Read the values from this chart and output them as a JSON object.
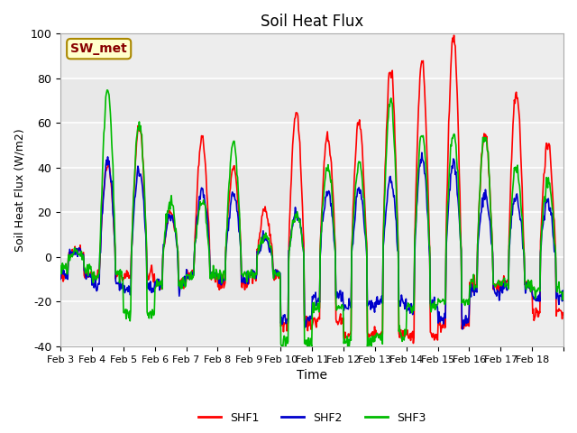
{
  "title": "Soil Heat Flux",
  "xlabel": "Time",
  "ylabel": "Soil Heat Flux (W/m2)",
  "ylim": [
    -40,
    100
  ],
  "line_colors": {
    "SHF1": "#ff0000",
    "SHF2": "#0000cc",
    "SHF3": "#00bb00"
  },
  "line_width": 1.2,
  "bg_color": "#e8e8e8",
  "annotation_text": "SW_met",
  "annotation_bg": "#ffffcc",
  "annotation_border": "#aa8800",
  "annotation_text_color": "#880000",
  "xtick_positions": [
    0,
    1,
    2,
    3,
    4,
    5,
    6,
    7,
    8,
    9,
    10,
    11,
    12,
    13,
    14,
    15,
    16
  ],
  "xtick_labels": [
    "Feb 3",
    "Feb 4",
    "Feb 5",
    "Feb 6",
    "Feb 7",
    "Feb 8",
    "Feb 9",
    "Feb 10",
    "Feb 11",
    "Feb 12",
    "Feb 13",
    "Feb 14",
    "Feb 15",
    "Feb 16",
    "Feb 17",
    "Feb 18",
    ""
  ],
  "ytick_labels": [
    -40,
    -20,
    0,
    20,
    40,
    60,
    80,
    100
  ],
  "legend_labels": [
    "SHF1",
    "SHF2",
    "SHF3"
  ],
  "shf1_peaks": [
    3,
    42,
    58,
    20,
    53,
    40,
    20,
    65,
    55,
    60,
    85,
    87,
    99,
    55,
    75,
    51
  ],
  "shf1_night": [
    -8,
    -8,
    -8,
    -12,
    -8,
    -12,
    -8,
    -30,
    -28,
    -35,
    -35,
    -35,
    -30,
    -12,
    -12,
    -25
  ],
  "shf2_peaks": [
    3,
    42,
    40,
    18,
    30,
    28,
    8,
    20,
    30,
    30,
    34,
    45,
    42,
    27,
    27,
    25
  ],
  "shf2_night": [
    -8,
    -12,
    -14,
    -12,
    -8,
    -10,
    -8,
    -28,
    -18,
    -22,
    -20,
    -22,
    -28,
    -15,
    -14,
    -18
  ],
  "shf3_peaks": [
    3,
    75,
    60,
    25,
    25,
    52,
    10,
    20,
    42,
    42,
    70,
    55,
    55,
    55,
    40,
    34
  ],
  "shf3_night": [
    -5,
    -8,
    -25,
    -12,
    -8,
    -8,
    -8,
    -38,
    -22,
    -38,
    -35,
    -22,
    -20,
    -12,
    -12,
    -15
  ],
  "n_days": 16,
  "n_per_day": 48,
  "noise_std": 1.5,
  "random_seed": 42
}
